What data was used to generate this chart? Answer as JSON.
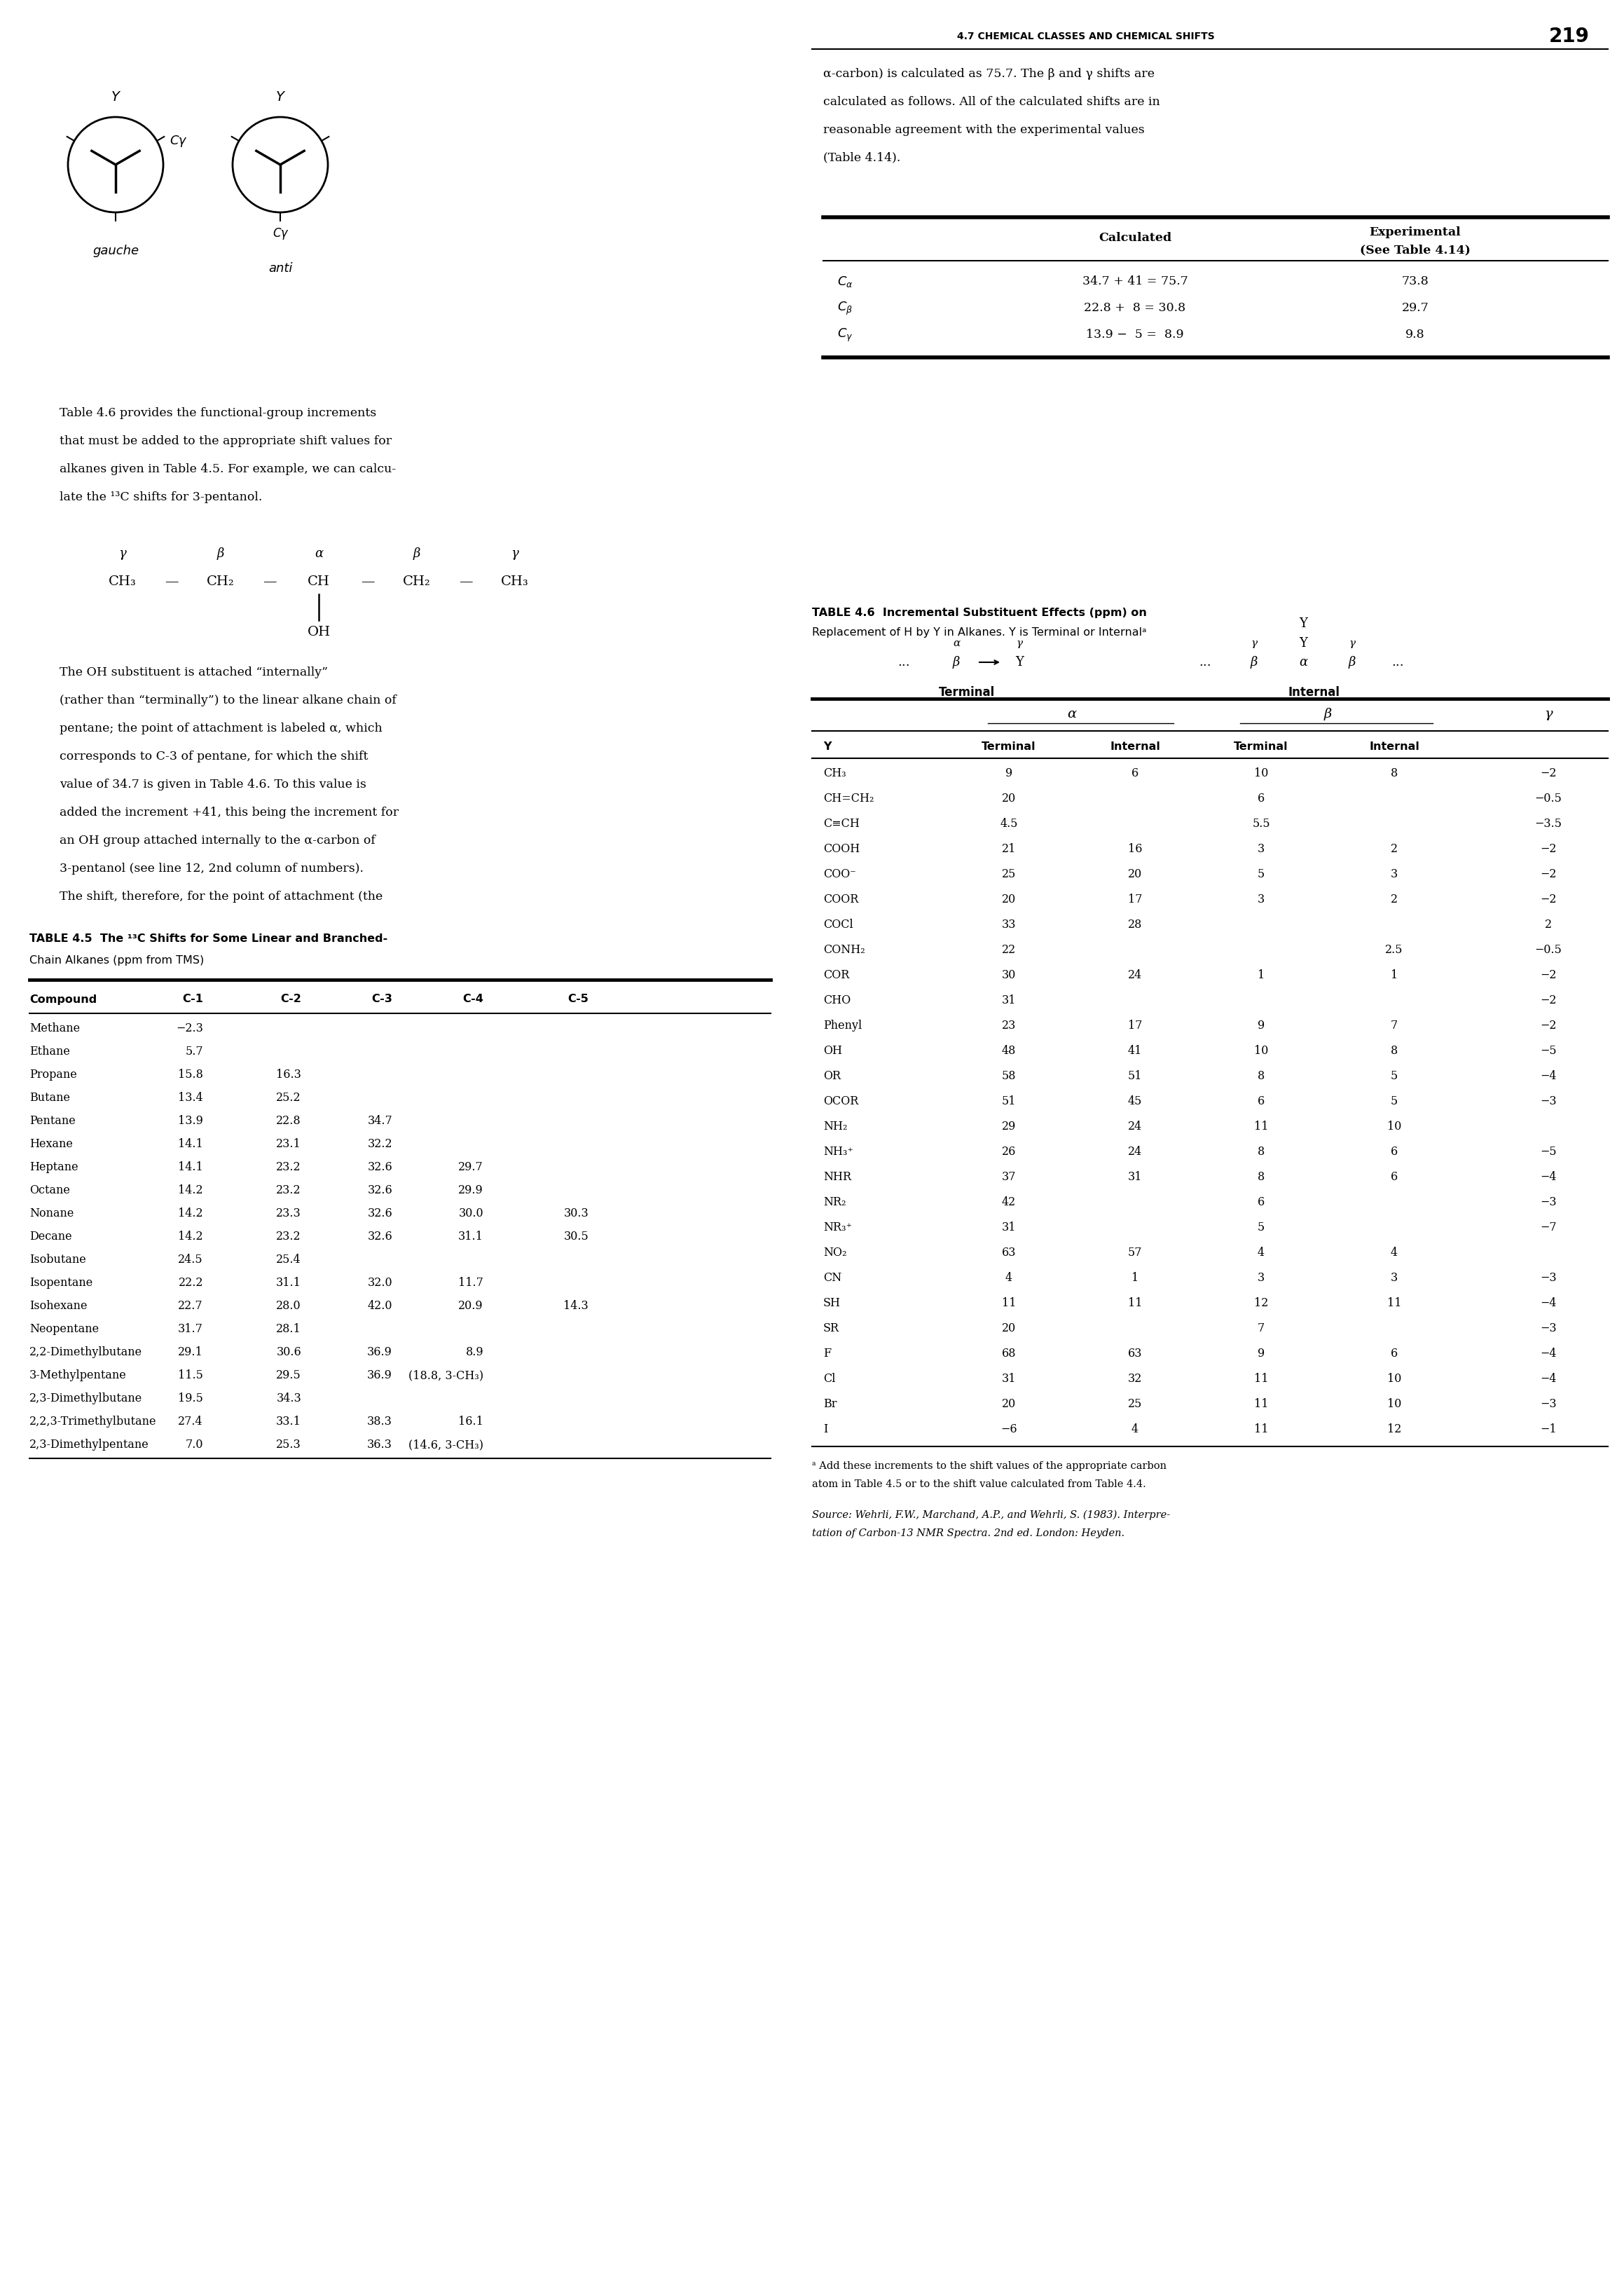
{
  "page_header": "4.7 CHEMICAL CLASSES AND CHEMICAL SHIFTS",
  "page_number": "219",
  "right_text_para1_lines": [
    "α-carbon) is calculated as 75.7. The β and γ shifts are",
    "calculated as follows. All of the calculated shifts are in",
    "reasonable agreement with the experimental values",
    "(Table 4.14)."
  ],
  "calc_table_header1": "Calculated",
  "calc_table_header2a": "Experimental",
  "calc_table_header2b": "(See Table 4.14)",
  "calc_rows": [
    [
      "$C_{\\alpha}$",
      "34.7 + 41 = 75.7",
      "73.8"
    ],
    [
      "$C_{\\beta}$",
      "22.8 +  8 = 30.8",
      "29.7"
    ],
    [
      "$C_{\\gamma}$",
      "13.9 −  5 =  8.9",
      "9.8"
    ]
  ],
  "left_text_lines": [
    "Table 4.6 provides the functional-group increments",
    "that must be added to the appropriate shift values for",
    "alkanes given in Table 4.5. For example, we can calcu-",
    "late the ¹³C shifts for 3-pentanol."
  ],
  "paragraph2_lines": [
    "The OH substituent is attached “internally”",
    "(rather than “terminally”) to the linear alkane chain of",
    "pentane; the point of attachment is labeled α, which",
    "corresponds to C-3 of pentane, for which the shift",
    "value of 34.7 is given in Table 4.6. To this value is",
    "added the increment +41, this being the increment for",
    "an OH group attached internally to the α-carbon of",
    "3-pentanol (see line 12, 2nd column of numbers).",
    "The shift, therefore, for the point of attachment (the"
  ],
  "table45_title1": "TABLE 4.5  The ¹³C Shifts for Some Linear and Branched-",
  "table45_title2": "Chain Alkanes (ppm from TMS)",
  "table45_headers": [
    "Compound",
    "C-1",
    "C-2",
    "C-3",
    "C-4",
    "C-5"
  ],
  "table45_rows": [
    [
      "Methane",
      "−2.3",
      "",
      "",
      "",
      ""
    ],
    [
      "Ethane",
      "5.7",
      "",
      "",
      "",
      ""
    ],
    [
      "Propane",
      "15.8",
      "16.3",
      "",
      "",
      ""
    ],
    [
      "Butane",
      "13.4",
      "25.2",
      "",
      "",
      ""
    ],
    [
      "Pentane",
      "13.9",
      "22.8",
      "34.7",
      "",
      ""
    ],
    [
      "Hexane",
      "14.1",
      "23.1",
      "32.2",
      "",
      ""
    ],
    [
      "Heptane",
      "14.1",
      "23.2",
      "32.6",
      "29.7",
      ""
    ],
    [
      "Octane",
      "14.2",
      "23.2",
      "32.6",
      "29.9",
      ""
    ],
    [
      "Nonane",
      "14.2",
      "23.3",
      "32.6",
      "30.0",
      "30.3"
    ],
    [
      "Decane",
      "14.2",
      "23.2",
      "32.6",
      "31.1",
      "30.5"
    ],
    [
      "Isobutane",
      "24.5",
      "25.4",
      "",
      "",
      ""
    ],
    [
      "Isopentane",
      "22.2",
      "31.1",
      "32.0",
      "11.7",
      ""
    ],
    [
      "Isohexane",
      "22.7",
      "28.0",
      "42.0",
      "20.9",
      "14.3"
    ],
    [
      "Neopentane",
      "31.7",
      "28.1",
      "",
      "",
      ""
    ],
    [
      "2,2-Dimethylbutane",
      "29.1",
      "30.6",
      "36.9",
      "8.9",
      ""
    ],
    [
      "3-Methylpentane",
      "11.5",
      "29.5",
      "36.9",
      "(18.8, 3-CH₃)",
      ""
    ],
    [
      "2,3-Dimethylbutane",
      "19.5",
      "34.3",
      "",
      "",
      ""
    ],
    [
      "2,2,3-Trimethylbutane",
      "27.4",
      "33.1",
      "38.3",
      "16.1",
      ""
    ],
    [
      "2,3-Dimethylpentane",
      "7.0",
      "25.3",
      "36.3",
      "(14.6, 3-CH₃)",
      ""
    ]
  ],
  "table46_title1": "TABLE 4.6  Incremental Substituent Effects (ppm) on",
  "table46_title2": "Replacement of H by Y in Alkanes. Y is Terminal or Internalᵃ",
  "table46_rows": [
    [
      "CH₃",
      "9",
      "6",
      "10",
      "8",
      "−2"
    ],
    [
      "CH=CH₂",
      "20",
      "",
      "6",
      "",
      "−0.5"
    ],
    [
      "C≡CH",
      "4.5",
      "",
      "5.5",
      "",
      "−3.5"
    ],
    [
      "COOH",
      "21",
      "16",
      "3",
      "2",
      "−2"
    ],
    [
      "COO⁻",
      "25",
      "20",
      "5",
      "3",
      "−2"
    ],
    [
      "COOR",
      "20",
      "17",
      "3",
      "2",
      "−2"
    ],
    [
      "COCl",
      "33",
      "28",
      "",
      "",
      "2"
    ],
    [
      "CONH₂",
      "22",
      "",
      "",
      "2.5",
      "−0.5"
    ],
    [
      "COR",
      "30",
      "24",
      "1",
      "1",
      "−2"
    ],
    [
      "CHO",
      "31",
      "",
      "",
      "",
      "−2"
    ],
    [
      "Phenyl",
      "23",
      "17",
      "9",
      "7",
      "−2"
    ],
    [
      "OH",
      "48",
      "41",
      "10",
      "8",
      "−5"
    ],
    [
      "OR",
      "58",
      "51",
      "8",
      "5",
      "−4"
    ],
    [
      "OCOR",
      "51",
      "45",
      "6",
      "5",
      "−3"
    ],
    [
      "NH₂",
      "29",
      "24",
      "11",
      "10",
      ""
    ],
    [
      "NH₃⁺",
      "26",
      "24",
      "8",
      "6",
      "−5"
    ],
    [
      "NHR",
      "37",
      "31",
      "8",
      "6",
      "−4"
    ],
    [
      "NR₂",
      "42",
      "",
      "6",
      "",
      "−3"
    ],
    [
      "NR₃⁺",
      "31",
      "",
      "5",
      "",
      "−7"
    ],
    [
      "NO₂",
      "63",
      "57",
      "4",
      "4",
      ""
    ],
    [
      "CN",
      "4",
      "1",
      "3",
      "3",
      "−3"
    ],
    [
      "SH",
      "11",
      "11",
      "12",
      "11",
      "−4"
    ],
    [
      "SR",
      "20",
      "",
      "7",
      "",
      "−3"
    ],
    [
      "F",
      "68",
      "63",
      "9",
      "6",
      "−4"
    ],
    [
      "Cl",
      "31",
      "32",
      "11",
      "10",
      "−4"
    ],
    [
      "Br",
      "20",
      "25",
      "11",
      "10",
      "−3"
    ],
    [
      "I",
      "−6",
      "4",
      "11",
      "12",
      "−1"
    ]
  ],
  "footnote_lines": [
    "ᵃ Add these increments to the shift values of the appropriate carbon",
    "atom in Table 4.5 or to the shift value calculated from Table 4.4."
  ],
  "source_lines": [
    "Source: Wehrli, F.W., Marchand, A.P., and Wehrli, S. (1983). Interpre-",
    "tation of Carbon-13 NMR Spectra. 2nd ed. London: Heyden."
  ]
}
